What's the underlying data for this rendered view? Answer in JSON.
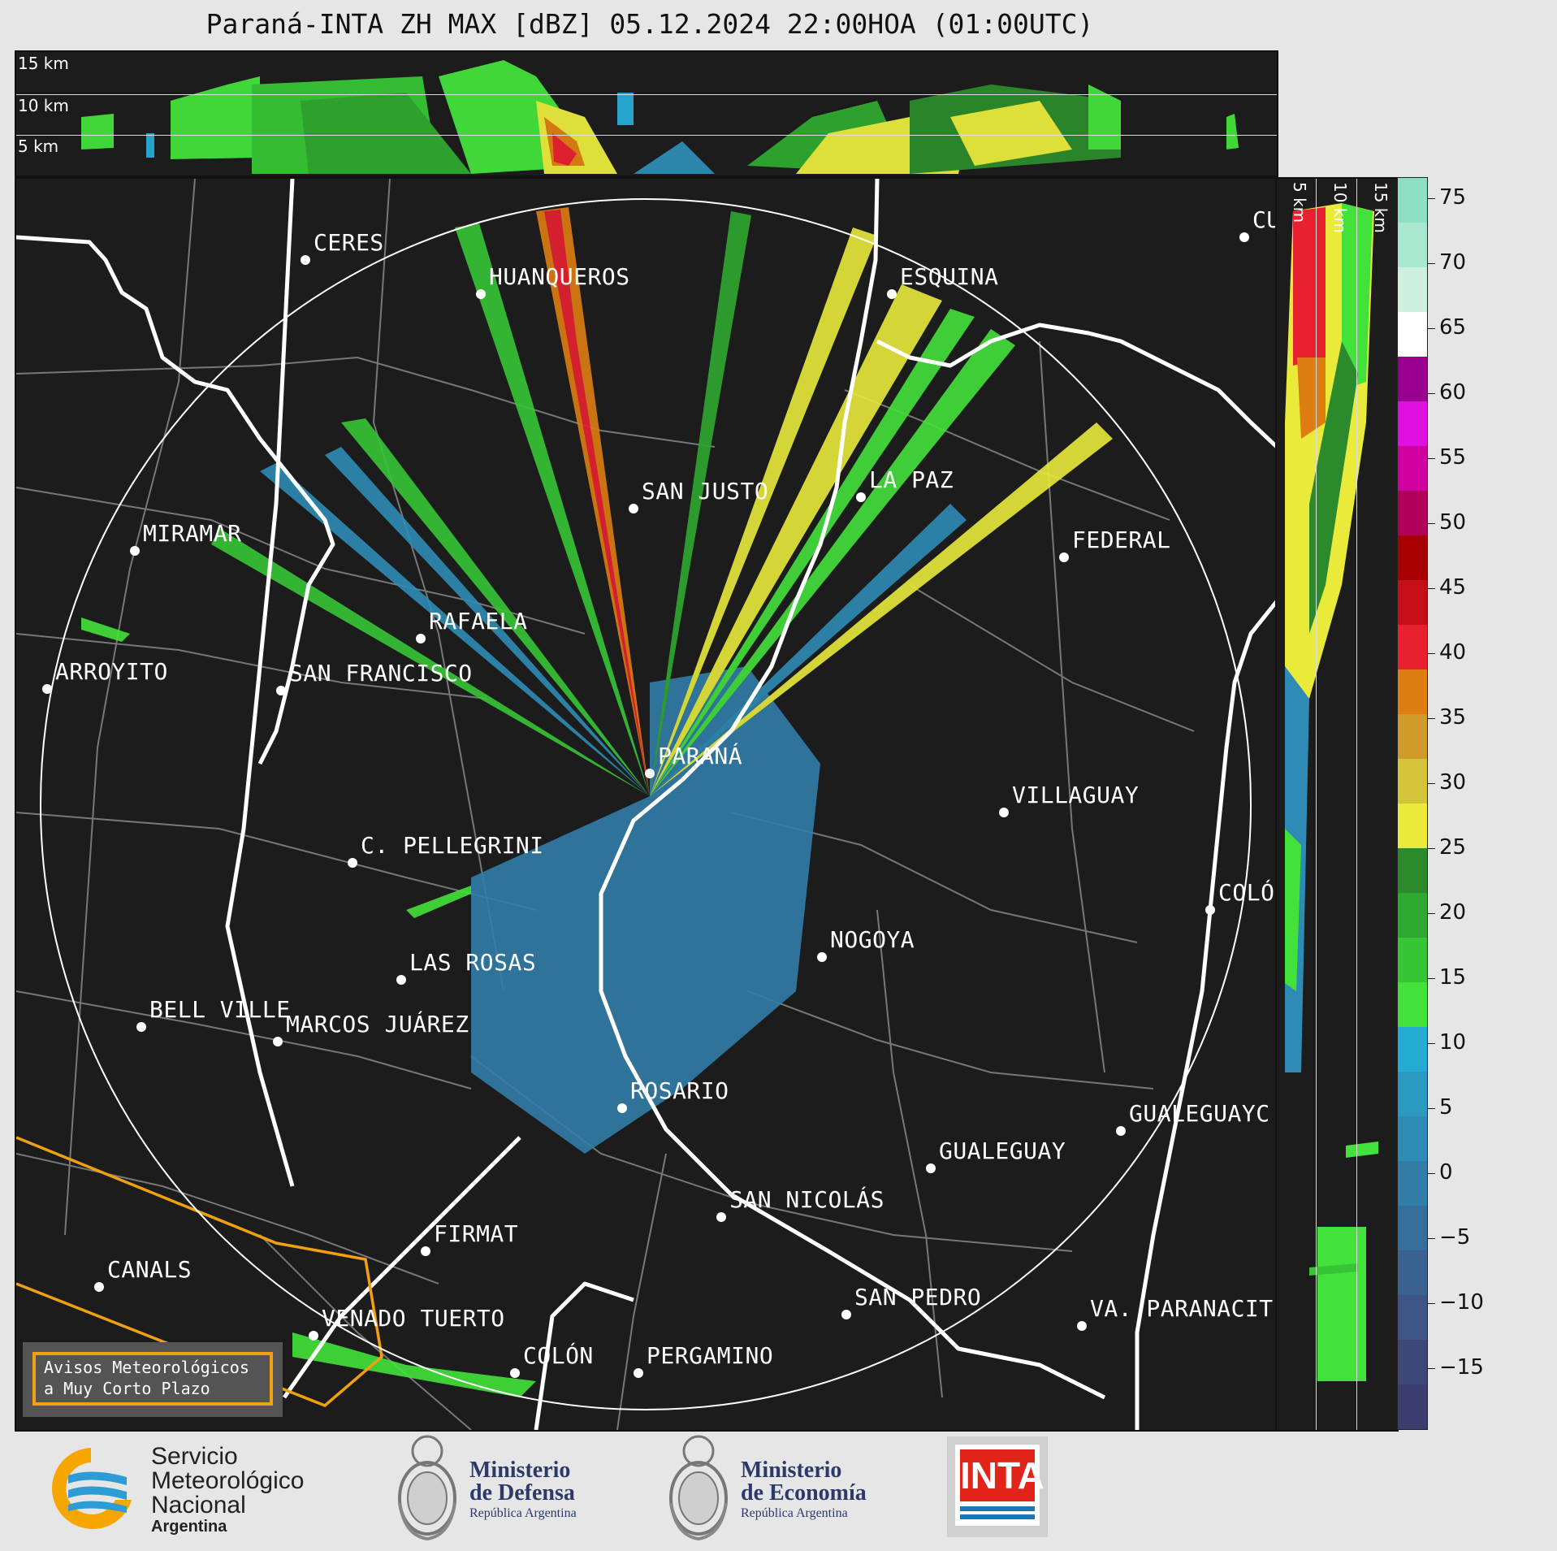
{
  "title": "Paraná-INTA ZH MAX [dBZ] 05.12.2024 22:00HOA (01:00UTC)",
  "top_profile": {
    "height_labels": [
      "15 km",
      "10 km",
      "5 km"
    ]
  },
  "side_profile": {
    "height_labels": [
      "5 km",
      "10 km",
      "15 km"
    ]
  },
  "colorbar": {
    "ticks": [
      "75",
      "70",
      "65",
      "60",
      "55",
      "50",
      "45",
      "40",
      "35",
      "30",
      "25",
      "20",
      "15",
      "10",
      "5",
      "0",
      "−5",
      "−10",
      "−15"
    ],
    "colors": [
      "#3c3c6e",
      "#3e4878",
      "#3f5585",
      "#3a6291",
      "#366f9c",
      "#327da8",
      "#2e8bb5",
      "#2a9ac2",
      "#25acd4",
      "#43e23a",
      "#36c535",
      "#2fa82f",
      "#2b8a2b",
      "#e9ea3a",
      "#d4c43a",
      "#d09b2a",
      "#dd7d12",
      "#e82030",
      "#c60e18",
      "#a80000",
      "#b0005a",
      "#d000a0",
      "#e010e0",
      "#9a0090",
      "#ffffff",
      "#cff0e0",
      "#a8e8d0",
      "#8ee0c4"
    ],
    "colors_note": "bottom-to-top"
  },
  "cities": [
    {
      "name": "CERES"
    },
    {
      "name": "HUANQUEROS"
    },
    {
      "name": "ESQUINA"
    },
    {
      "name": "CU"
    },
    {
      "name": "SAN JUSTO"
    },
    {
      "name": "LA PAZ"
    },
    {
      "name": "MIRAMAR"
    },
    {
      "name": "FEDERAL"
    },
    {
      "name": "RAFAELA"
    },
    {
      "name": "ARROYITO"
    },
    {
      "name": "SAN FRANCISCO"
    },
    {
      "name": "PARANÁ"
    },
    {
      "name": "VILLAGUAY"
    },
    {
      "name": "C. PELLEGRINI"
    },
    {
      "name": "COLÓ"
    },
    {
      "name": "NOGOYA"
    },
    {
      "name": "LAS ROSAS"
    },
    {
      "name": "BELL VILLE"
    },
    {
      "name": "MARCOS JUÁREZ"
    },
    {
      "name": "ROSARIO"
    },
    {
      "name": "GUALEGUAYC"
    },
    {
      "name": "GUALEGUAY"
    },
    {
      "name": "SAN NICOLÁS"
    },
    {
      "name": "FIRMAT"
    },
    {
      "name": "CANALS"
    },
    {
      "name": "SAN PEDRO"
    },
    {
      "name": "VA. PARANACIT"
    },
    {
      "name": "VENADO TUERTO"
    },
    {
      "name": "COLÓN"
    },
    {
      "name": "PERGAMINO"
    }
  ],
  "alert_box": {
    "line1": "Avisos Meteorológicos",
    "line2": "a Muy Corto Plazo"
  },
  "logos": {
    "smn": {
      "line1": "Servicio",
      "line2": "Meteorológico",
      "line3": "Nacional",
      "line4": "Argentina"
    },
    "defensa": {
      "line1": "Ministerio",
      "line2": "de Defensa",
      "line3": "República Argentina"
    },
    "economia": {
      "line1": "Ministerio",
      "line2": "de Economía",
      "line3": "República Argentina"
    },
    "inta": {
      "text": "INTA"
    }
  }
}
